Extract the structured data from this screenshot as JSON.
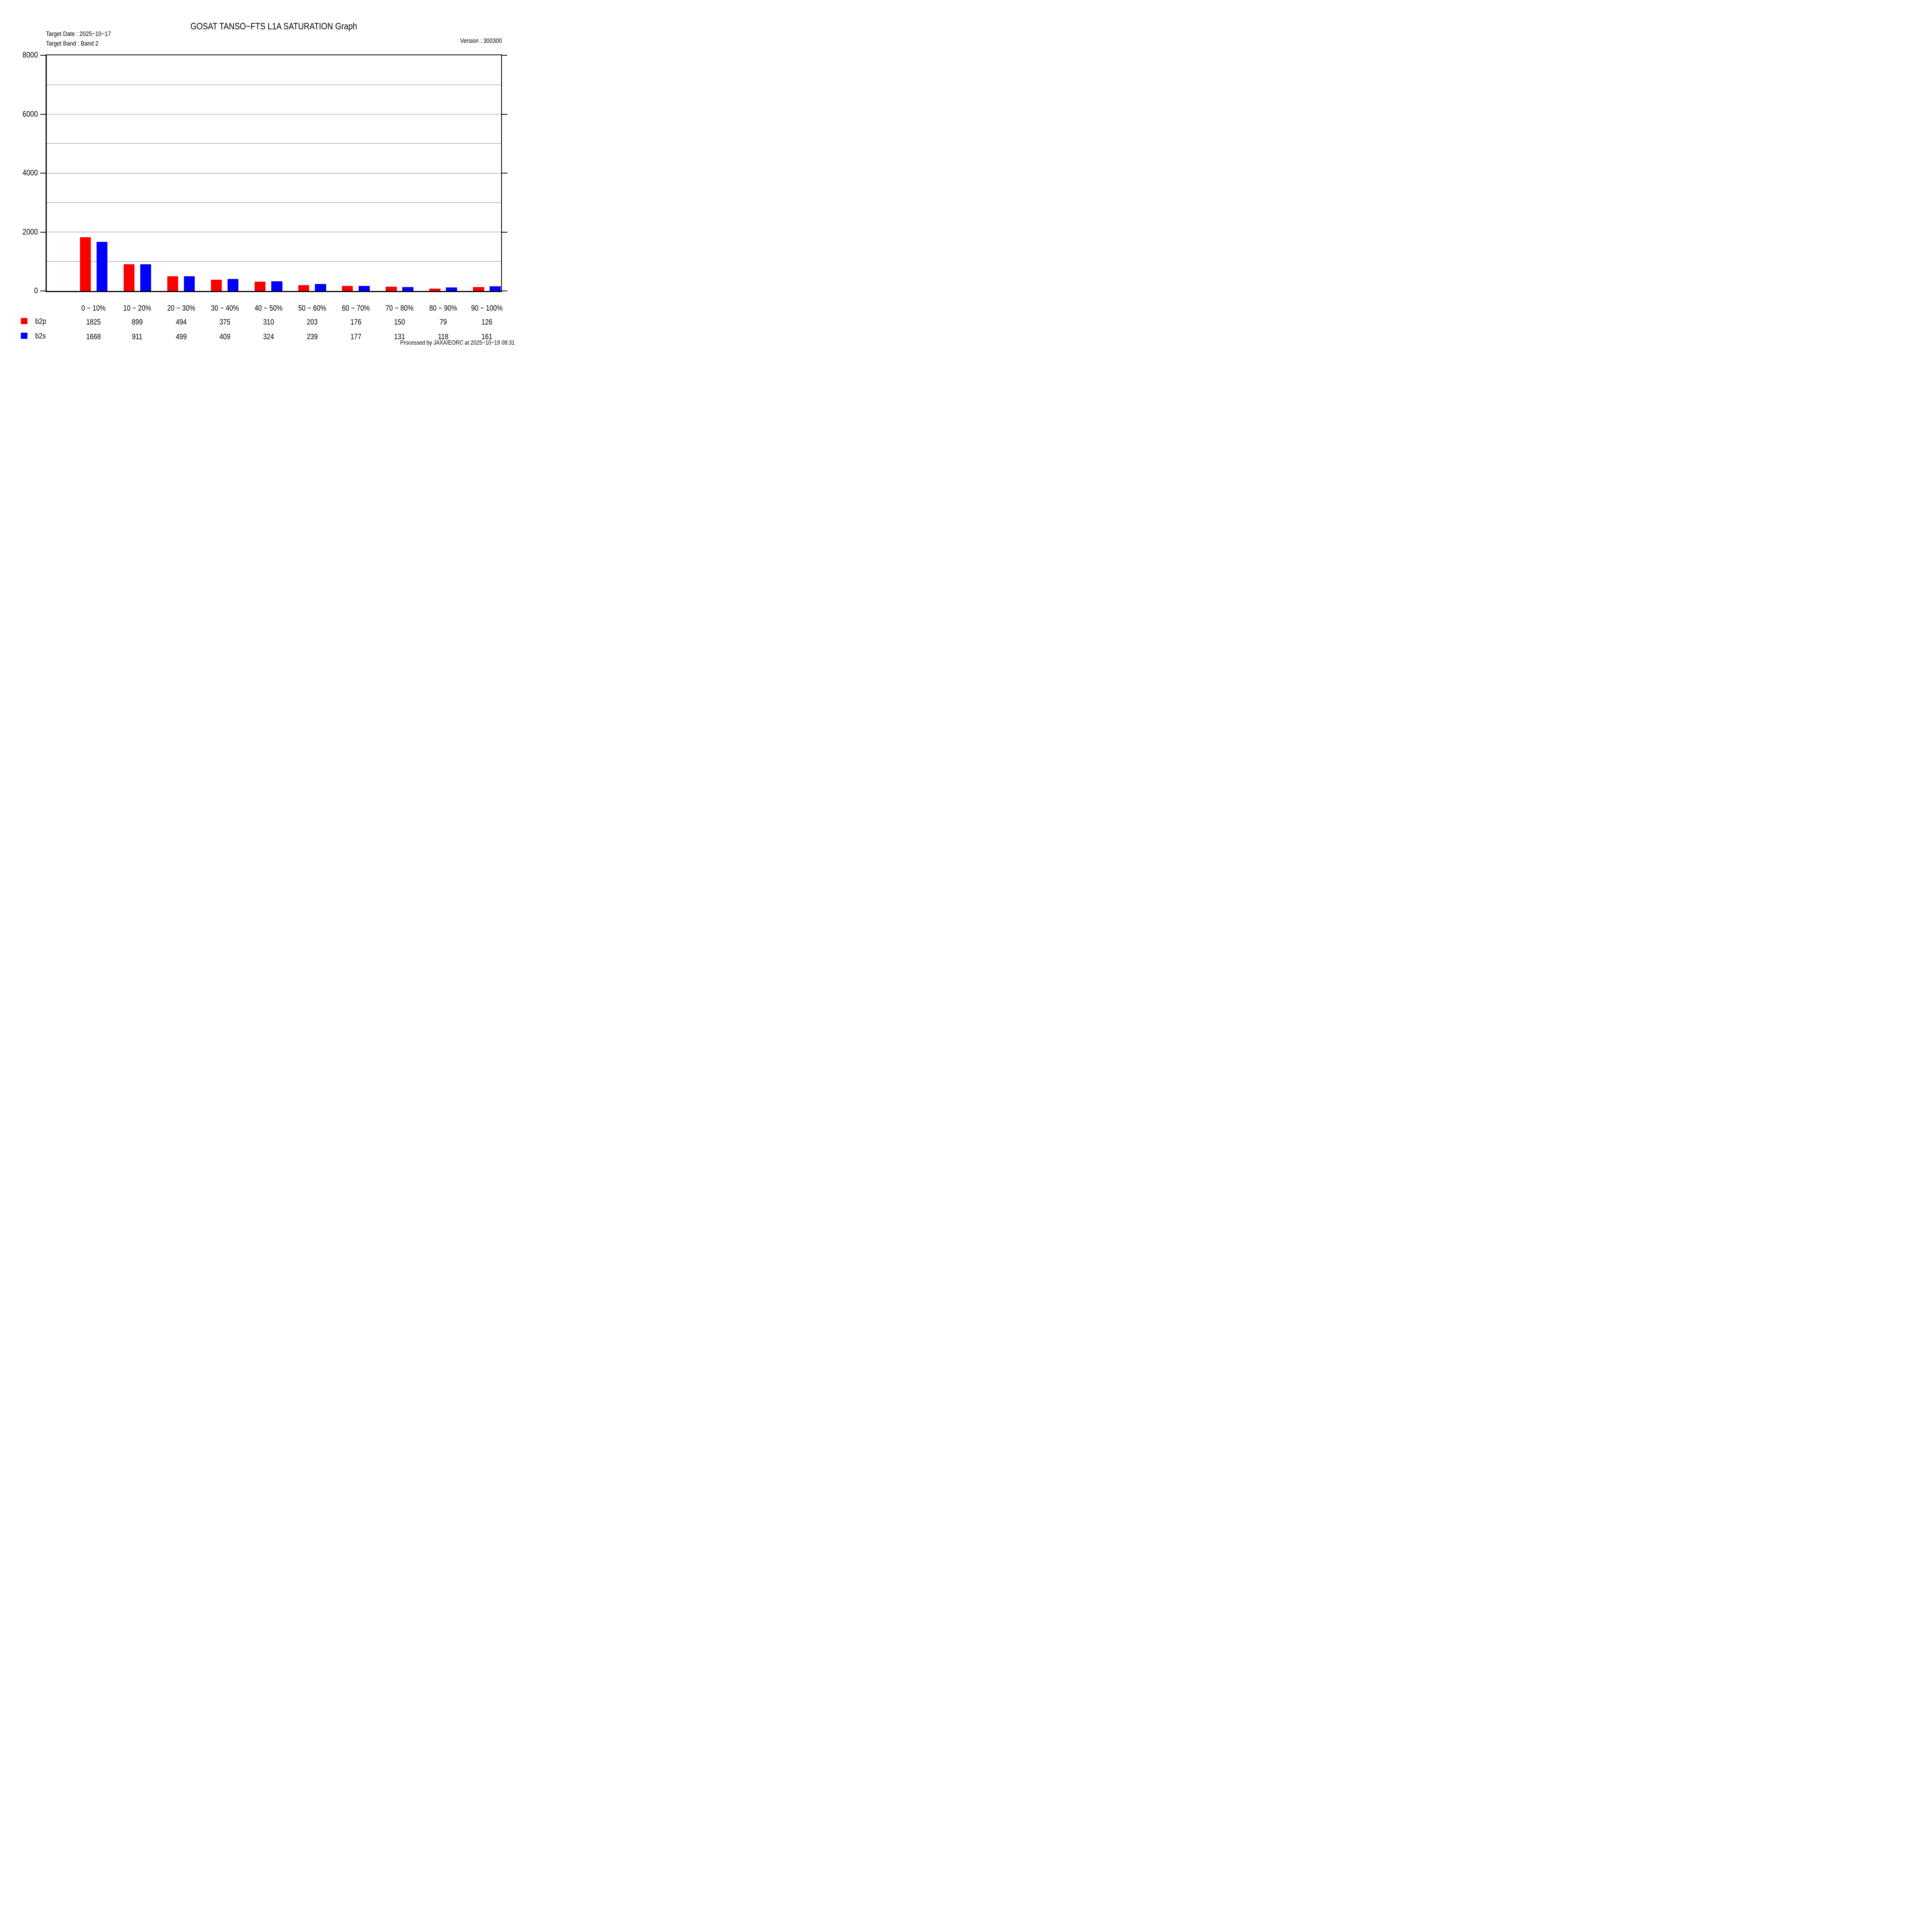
{
  "header": {
    "title": "GOSAT TANSO−FTS L1A SATURATION Graph",
    "target_date": "Target Date : 2025−10−17",
    "target_band": "Target Band : Band 2",
    "version": "Version : 300300"
  },
  "footer": {
    "processed_by": "Processed by JAXA/EORC at 2025−10−19 08:31"
  },
  "chart_data": {
    "type": "bar",
    "title": "GOSAT TANSO−FTS L1A SATURATION Graph",
    "categories": [
      "0 − 10%",
      "10 − 20%",
      "20 − 30%",
      "30 − 40%",
      "40 − 50%",
      "50 − 60%",
      "60 − 70%",
      "70 − 80%",
      "80 − 90%",
      "90 − 100%"
    ],
    "series": [
      {
        "name": "b2p",
        "color": "#ff0000",
        "values": [
          1825,
          899,
          494,
          375,
          310,
          203,
          176,
          150,
          79,
          126
        ]
      },
      {
        "name": "b2s",
        "color": "#0000ff",
        "values": [
          1668,
          911,
          499,
          409,
          324,
          239,
          177,
          131,
          118,
          161
        ]
      }
    ],
    "xlabel": "",
    "ylabel": "",
    "ylim": [
      0,
      8000
    ],
    "yticks": [
      0,
      2000,
      4000,
      6000,
      8000
    ],
    "grid_step": 1000,
    "grid": true,
    "axis_color": "#000000",
    "grid_color": "#858585",
    "legend_position": "bottom-left"
  }
}
